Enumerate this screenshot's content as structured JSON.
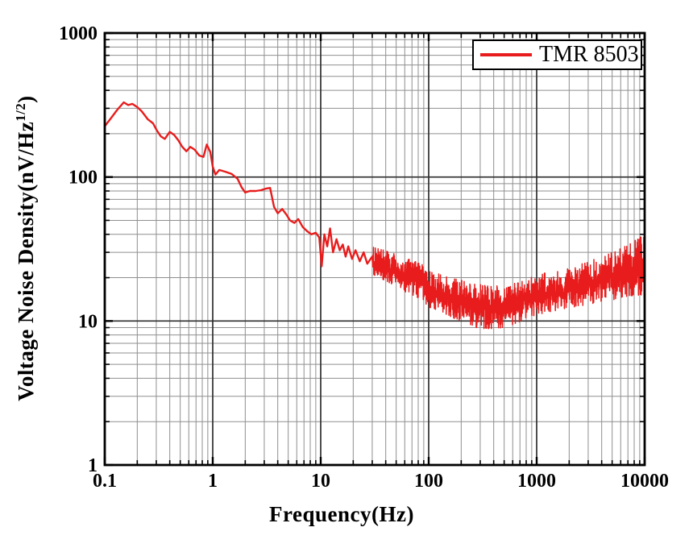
{
  "figure": {
    "background": "#ffffff",
    "x_axis_title": "Frequency(Hz)",
    "y_axis_title_prefix": "Voltage Noise Density(nV/Hz",
    "y_axis_title_sup": "1/2",
    "y_axis_title_suffix": ")",
    "legend": {
      "label": "TMR 8503",
      "line_color": "#e81c1c"
    }
  },
  "colors": {
    "curve": "#e81c1c",
    "grid_minor": "#8f8f8f",
    "grid_major": "#2e2e2e",
    "frame": "#000000",
    "text": "#000000"
  },
  "chart_data": {
    "type": "line",
    "title": "",
    "xlabel": "Frequency(Hz)",
    "ylabel": "Voltage Noise Density(nV/Hz^1/2)",
    "x_scale": "log",
    "y_scale": "log",
    "xlim": [
      0.1,
      10000
    ],
    "ylim": [
      1,
      1000
    ],
    "x_tick_values": [
      0.1,
      1,
      10,
      100,
      1000,
      10000
    ],
    "x_tick_labels": [
      "0.1",
      "1",
      "10",
      "100",
      "1000",
      "10000"
    ],
    "y_tick_values": [
      1,
      10,
      100,
      1000
    ],
    "y_tick_labels": [
      "1",
      "10",
      "100",
      "1000"
    ],
    "grid": "major+minor, both axes",
    "legend_position": "top-right",
    "series": [
      {
        "name": "TMR 8503",
        "color": "#e81c1c",
        "line_points": [
          [
            0.1,
            225
          ],
          [
            0.115,
            258
          ],
          [
            0.13,
            292
          ],
          [
            0.15,
            330
          ],
          [
            0.165,
            316
          ],
          [
            0.18,
            322
          ],
          [
            0.2,
            306
          ],
          [
            0.22,
            286
          ],
          [
            0.25,
            252
          ],
          [
            0.28,
            236
          ],
          [
            0.3,
            214
          ],
          [
            0.33,
            192
          ],
          [
            0.36,
            184
          ],
          [
            0.4,
            206
          ],
          [
            0.44,
            196
          ],
          [
            0.48,
            180
          ],
          [
            0.52,
            163
          ],
          [
            0.57,
            151
          ],
          [
            0.62,
            162
          ],
          [
            0.68,
            155
          ],
          [
            0.75,
            141
          ],
          [
            0.82,
            138
          ],
          [
            0.88,
            168
          ],
          [
            0.95,
            149
          ],
          [
            1.0,
            118
          ],
          [
            1.06,
            104
          ],
          [
            1.15,
            112
          ],
          [
            1.3,
            109
          ],
          [
            1.5,
            105
          ],
          [
            1.7,
            97
          ],
          [
            1.85,
            85
          ],
          [
            2.0,
            78
          ],
          [
            2.2,
            80
          ],
          [
            2.5,
            80
          ],
          [
            2.8,
            81
          ],
          [
            3.1,
            83
          ],
          [
            3.4,
            84
          ],
          [
            3.7,
            62
          ],
          [
            4.0,
            56
          ],
          [
            4.4,
            60
          ],
          [
            4.8,
            55
          ],
          [
            5.2,
            50
          ],
          [
            5.7,
            48
          ],
          [
            6.2,
            51
          ],
          [
            6.8,
            45
          ],
          [
            7.5,
            42
          ],
          [
            8.2,
            40
          ],
          [
            9.0,
            41
          ],
          [
            9.7,
            38
          ],
          [
            10.2,
            24
          ],
          [
            10.8,
            40
          ],
          [
            11.5,
            33
          ],
          [
            12.2,
            44
          ],
          [
            13,
            30
          ],
          [
            14,
            37
          ],
          [
            15,
            31
          ],
          [
            16,
            34
          ],
          [
            17,
            28
          ],
          [
            18,
            33
          ],
          [
            19.5,
            27
          ],
          [
            21,
            31
          ],
          [
            23,
            26
          ],
          [
            25,
            30
          ],
          [
            27,
            25
          ],
          [
            30,
            28
          ]
        ],
        "noise_band_envelope": [
          [
            30,
            21,
            33
          ],
          [
            40,
            19,
            31
          ],
          [
            50,
            17,
            29
          ],
          [
            65,
            15.5,
            27
          ],
          [
            85,
            14,
            25
          ],
          [
            100,
            12.5,
            22.5
          ],
          [
            130,
            11.5,
            21
          ],
          [
            170,
            10.5,
            20
          ],
          [
            220,
            9.5,
            19
          ],
          [
            300,
            8.8,
            18
          ],
          [
            400,
            8.8,
            17.5
          ],
          [
            500,
            9,
            18
          ],
          [
            650,
            9.5,
            18.5
          ],
          [
            800,
            10.5,
            19.5
          ],
          [
            1000,
            11,
            21
          ],
          [
            1300,
            11.5,
            22
          ],
          [
            1700,
            12,
            23
          ],
          [
            2200,
            12.5,
            24
          ],
          [
            3000,
            13,
            26
          ],
          [
            4000,
            13.5,
            28
          ],
          [
            5000,
            14,
            30
          ],
          [
            6500,
            14.5,
            33
          ],
          [
            8000,
            15,
            36
          ],
          [
            9500,
            15,
            40
          ],
          [
            10000,
            14,
            38
          ]
        ],
        "end_point": [
          10000,
          12
        ]
      }
    ]
  }
}
